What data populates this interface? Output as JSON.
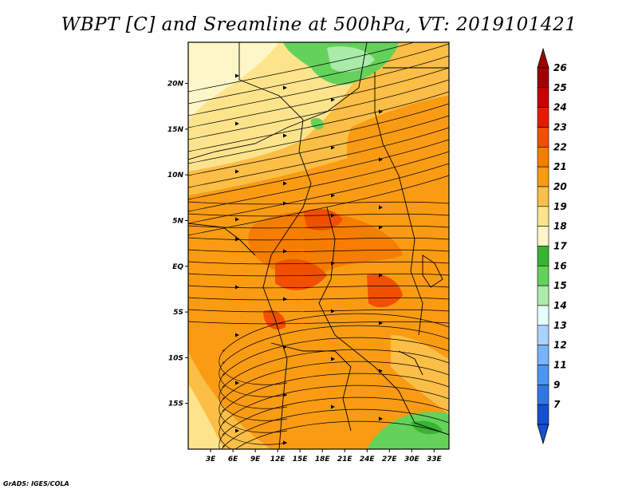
{
  "title": "WBPT [C] and Sreamline at 500hPa, VT: 2019101421",
  "credit": "GrADS: IGES/COLA",
  "map": {
    "lon_range": [
      0,
      35
    ],
    "lat_range": [
      -20,
      24.5
    ],
    "lon_ticks": [
      {
        "value": 3,
        "label": "3E"
      },
      {
        "value": 6,
        "label": "6E"
      },
      {
        "value": 9,
        "label": "9E"
      },
      {
        "value": 12,
        "label": "12E"
      },
      {
        "value": 15,
        "label": "15E"
      },
      {
        "value": 18,
        "label": "18E"
      },
      {
        "value": 21,
        "label": "21E"
      },
      {
        "value": 24,
        "label": "24E"
      },
      {
        "value": 27,
        "label": "27E"
      },
      {
        "value": 30,
        "label": "30E"
      },
      {
        "value": 33,
        "label": "33E"
      }
    ],
    "lat_ticks": [
      {
        "value": 20,
        "label": "20N"
      },
      {
        "value": 15,
        "label": "15N"
      },
      {
        "value": 10,
        "label": "10N"
      },
      {
        "value": 5,
        "label": "5N"
      },
      {
        "value": 0,
        "label": "EQ"
      },
      {
        "value": -5,
        "label": "5S"
      },
      {
        "value": -10,
        "label": "10S"
      },
      {
        "value": -15,
        "label": "15S"
      }
    ]
  },
  "colorbar": {
    "levels": [
      {
        "label": "26",
        "color": "#a00000"
      },
      {
        "label": "25",
        "color": "#c80000"
      },
      {
        "label": "24",
        "color": "#e61c00"
      },
      {
        "label": "23",
        "color": "#f05000"
      },
      {
        "label": "22",
        "color": "#f57d00"
      },
      {
        "label": "21",
        "color": "#fa9b14"
      },
      {
        "label": "20",
        "color": "#fbbe46"
      },
      {
        "label": "19",
        "color": "#fde48c"
      },
      {
        "label": "18",
        "color": "#fdf6c8"
      },
      {
        "label": "17",
        "color": "#37b432"
      },
      {
        "label": "16",
        "color": "#64d25a"
      },
      {
        "label": "15",
        "color": "#aaebaa"
      },
      {
        "label": "14",
        "color": "#e6ffff"
      },
      {
        "label": "13",
        "color": "#aad2ff"
      },
      {
        "label": "12",
        "color": "#78b4ff"
      },
      {
        "label": "11",
        "color": "#4b96f5"
      },
      {
        "label": "9",
        "color": "#2d78e6"
      },
      {
        "label": "7",
        "color": "#1450d2"
      }
    ]
  }
}
